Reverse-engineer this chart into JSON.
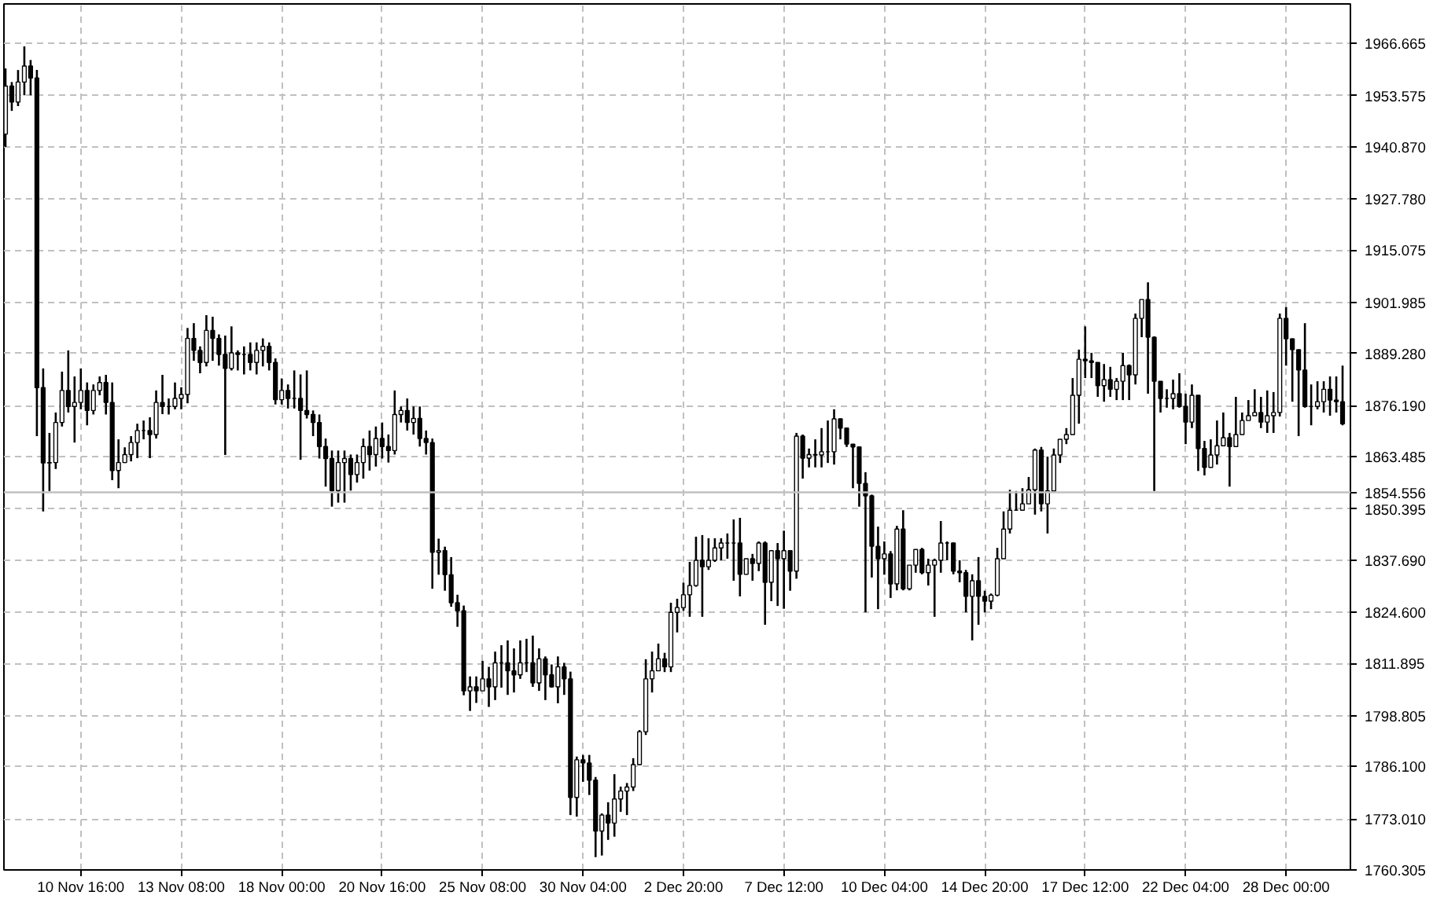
{
  "chart_data": {
    "type": "candlestick",
    "color": "#000000",
    "grid": true,
    "categories": [
      null,
      null,
      null,
      null,
      null,
      null,
      null,
      null,
      null,
      null,
      null,
      null,
      "10 Nov 16:00",
      null,
      null,
      null,
      null,
      null,
      null,
      null,
      null,
      null,
      null,
      null,
      null,
      null,
      null,
      null,
      "13 Nov 08:00",
      null,
      null,
      null,
      null,
      null,
      null,
      null,
      null,
      null,
      null,
      null,
      null,
      null,
      null,
      null,
      "18 Nov 00:00",
      null,
      null,
      null,
      null,
      null,
      null,
      null,
      null,
      null,
      null,
      null,
      null,
      null,
      null,
      null,
      "20 Nov 16:00",
      null,
      null,
      null,
      null,
      null,
      null,
      null,
      null,
      null,
      null,
      null,
      null,
      null,
      null,
      null,
      "25 Nov 08:00",
      null,
      null,
      null,
      null,
      null,
      null,
      null,
      null,
      null,
      null,
      null,
      null,
      null,
      null,
      null,
      "30 Nov 04:00",
      null,
      null,
      null,
      null,
      null,
      null,
      null,
      null,
      null,
      null,
      null,
      null,
      null,
      null,
      null,
      "2 Dec 20:00",
      null,
      null,
      null,
      null,
      null,
      null,
      null,
      null,
      null,
      null,
      null,
      null,
      null,
      null,
      null,
      "7 Dec 12:00",
      null,
      null,
      null,
      null,
      null,
      null,
      null,
      null,
      null,
      null,
      null,
      null,
      null,
      null,
      null,
      "10 Dec 04:00",
      null,
      null,
      null,
      null,
      null,
      null,
      null,
      null,
      null,
      null,
      null,
      null,
      null,
      null,
      null,
      "14 Dec 20:00",
      null,
      null,
      null,
      null,
      null,
      null,
      null,
      null,
      null,
      null,
      null,
      null,
      null,
      null,
      null,
      "17 Dec 12:00",
      null,
      null,
      null,
      null,
      null,
      null,
      null,
      null,
      null,
      null,
      null,
      null,
      null,
      null,
      null,
      "22 Dec 04:00",
      null,
      null,
      null,
      null,
      null,
      null,
      null,
      null,
      null,
      null,
      null,
      null,
      null,
      null,
      null,
      "28 Dec 00:00",
      null,
      null,
      null,
      null,
      null,
      null,
      null,
      null,
      null
    ],
    "ohlc": [
      [
        1944,
        1960.4,
        1940.8,
        1956
      ],
      [
        1956,
        1957,
        1949.8,
        1952
      ],
      [
        1952,
        1960,
        1951,
        1957
      ],
      [
        1957,
        1965.9,
        1953.7,
        1961
      ],
      [
        1961,
        1962.5,
        1953.7,
        1958
      ],
      [
        1958,
        1960,
        1868.6,
        1880.7
      ],
      [
        1880.7,
        1885.5,
        1849.8,
        1861.9
      ],
      [
        1861.9,
        1869.4,
        1854.9,
        1862
      ],
      [
        1862,
        1874.5,
        1860.4,
        1872
      ],
      [
        1872,
        1884.7,
        1871,
        1880
      ],
      [
        1880,
        1890,
        1874.5,
        1876
      ],
      [
        1876,
        1883.5,
        1867,
        1877
      ],
      [
        1877,
        1885.5,
        1875.3,
        1880
      ],
      [
        1880,
        1882,
        1871.3,
        1875
      ],
      [
        1875,
        1881.5,
        1874,
        1880
      ],
      [
        1880,
        1883.5,
        1878.8,
        1882
      ],
      [
        1882,
        1883.9,
        1874,
        1877
      ],
      [
        1877,
        1882,
        1857.6,
        1860
      ],
      [
        1860,
        1867.8,
        1855.6,
        1862
      ],
      [
        1862,
        1865.8,
        1861.9,
        1864
      ],
      [
        1864,
        1868.6,
        1862.3,
        1867
      ],
      [
        1867,
        1871.7,
        1863.1,
        1870
      ],
      [
        1870,
        1872.5,
        1867.8,
        1870
      ],
      [
        1870,
        1873.3,
        1863.1,
        1869
      ],
      [
        1869,
        1880,
        1868,
        1877
      ],
      [
        1877,
        1883.9,
        1874.1,
        1876
      ],
      [
        1876,
        1878,
        1874,
        1876
      ],
      [
        1876,
        1882,
        1875.3,
        1878
      ],
      [
        1878,
        1880.8,
        1875.3,
        1879
      ],
      [
        1879,
        1895.6,
        1876.8,
        1893
      ],
      [
        1893,
        1896.8,
        1887.4,
        1890
      ],
      [
        1890,
        1891,
        1884.3,
        1887
      ],
      [
        1887,
        1898.8,
        1886,
        1895
      ],
      [
        1895,
        1898.4,
        1887.4,
        1893
      ],
      [
        1893,
        1894,
        1886.2,
        1889
      ],
      [
        1889,
        1893.7,
        1863.9,
        1885.5
      ],
      [
        1885.5,
        1896,
        1885,
        1889.4
      ],
      [
        1889.4,
        1890,
        1885,
        1889
      ],
      [
        1889,
        1891,
        1884,
        1889
      ],
      [
        1889,
        1892,
        1885,
        1887
      ],
      [
        1887,
        1892,
        1884,
        1890
      ],
      [
        1890,
        1893,
        1886,
        1891
      ],
      [
        1891,
        1892,
        1885,
        1887
      ],
      [
        1887,
        1888,
        1876.5,
        1877.7
      ],
      [
        1877.7,
        1883,
        1876.5,
        1880
      ],
      [
        1880,
        1881.5,
        1875.5,
        1878
      ],
      [
        1878,
        1885,
        1875.5,
        1878
      ],
      [
        1878,
        1884,
        1862.7,
        1875
      ],
      [
        1875,
        1885,
        1873,
        1874
      ],
      [
        1874,
        1875,
        1868.6,
        1872
      ],
      [
        1872,
        1874,
        1863,
        1866
      ],
      [
        1866,
        1868,
        1856,
        1863
      ],
      [
        1863,
        1865,
        1851,
        1855
      ],
      [
        1855,
        1865,
        1852,
        1862
      ],
      [
        1862,
        1865,
        1852,
        1863
      ],
      [
        1863,
        1864,
        1855,
        1859
      ],
      [
        1859,
        1864,
        1857,
        1862
      ],
      [
        1862,
        1868,
        1858,
        1866
      ],
      [
        1866,
        1870,
        1860,
        1864
      ],
      [
        1864,
        1871,
        1861,
        1868
      ],
      [
        1868,
        1872,
        1863,
        1866
      ],
      [
        1866,
        1869,
        1862,
        1865
      ],
      [
        1865,
        1880,
        1864,
        1874
      ],
      [
        1874,
        1876,
        1872,
        1875
      ],
      [
        1875,
        1878,
        1870,
        1872
      ],
      [
        1872,
        1876,
        1869,
        1873
      ],
      [
        1873,
        1876,
        1866,
        1868
      ],
      [
        1868,
        1870,
        1864,
        1867
      ],
      [
        1867,
        1868,
        1830.5,
        1839.6
      ],
      [
        1839.6,
        1843,
        1834,
        1840
      ],
      [
        1840,
        1841,
        1830,
        1834
      ],
      [
        1834,
        1838.4,
        1826,
        1827
      ],
      [
        1827,
        1829,
        1821,
        1825
      ],
      [
        1825,
        1826.3,
        1803.9,
        1805
      ],
      [
        1805,
        1808.6,
        1800,
        1806
      ],
      [
        1806,
        1808.6,
        1802,
        1805
      ],
      [
        1805,
        1812.5,
        1805,
        1808
      ],
      [
        1808,
        1811,
        1801,
        1806
      ],
      [
        1806,
        1814.8,
        1802.7,
        1812
      ],
      [
        1812,
        1816.4,
        1805.8,
        1812
      ],
      [
        1812,
        1817.6,
        1804,
        1810
      ],
      [
        1810,
        1815.6,
        1804.6,
        1809
      ],
      [
        1809,
        1817.6,
        1808,
        1812
      ],
      [
        1812,
        1818,
        1809.7,
        1812
      ],
      [
        1812,
        1818.8,
        1806,
        1807
      ],
      [
        1807,
        1815.6,
        1805,
        1813
      ],
      [
        1813,
        1813.6,
        1802.7,
        1809
      ],
      [
        1809,
        1811.6,
        1805.8,
        1806
      ],
      [
        1806,
        1813.6,
        1801.9,
        1811
      ],
      [
        1811,
        1812,
        1804,
        1808
      ],
      [
        1808,
        1809.8,
        1774,
        1778.4
      ],
      [
        1778.4,
        1788.6,
        1773.6,
        1787.8
      ],
      [
        1787.8,
        1789,
        1782.3,
        1787
      ],
      [
        1787,
        1789,
        1779,
        1782.7
      ],
      [
        1782.7,
        1783.5,
        1763.5,
        1770
      ],
      [
        1770,
        1774.4,
        1763.9,
        1774
      ],
      [
        1774,
        1777.2,
        1767.8,
        1772
      ],
      [
        1772,
        1784.2,
        1768.6,
        1778
      ],
      [
        1778,
        1781.1,
        1774.8,
        1780
      ],
      [
        1780,
        1782,
        1774,
        1781
      ],
      [
        1781,
        1788.2,
        1780,
        1786.6
      ],
      [
        1786.6,
        1795.2,
        1786.5,
        1794.8
      ],
      [
        1794.8,
        1812.9,
        1794,
        1808
      ],
      [
        1808,
        1814.8,
        1804.6,
        1810
      ],
      [
        1810,
        1816.8,
        1810,
        1813
      ],
      [
        1813,
        1814.5,
        1809.7,
        1811
      ],
      [
        1811,
        1827,
        1809.7,
        1824.6
      ],
      [
        1824.6,
        1828,
        1819.6,
        1825.8
      ],
      [
        1825.8,
        1832,
        1825,
        1829
      ],
      [
        1829,
        1837.2,
        1823.5,
        1831.3
      ],
      [
        1831.3,
        1843.5,
        1831,
        1837.6
      ],
      [
        1837.6,
        1843.9,
        1823.5,
        1836
      ],
      [
        1836,
        1843.1,
        1835.2,
        1837.6
      ],
      [
        1837.6,
        1843.1,
        1837.2,
        1840.7
      ],
      [
        1840.7,
        1843.1,
        1837.6,
        1841.9
      ],
      [
        1841.9,
        1844.3,
        1838,
        1841.9
      ],
      [
        1841.9,
        1847.8,
        1832.5,
        1841.9
      ],
      [
        1841.9,
        1848.2,
        1828.6,
        1834.1
      ],
      [
        1834.1,
        1838,
        1834,
        1838
      ],
      [
        1838,
        1839.2,
        1832.5,
        1836.8
      ],
      [
        1836.8,
        1842.3,
        1834.9,
        1841.9
      ],
      [
        1841.9,
        1842.3,
        1821.5,
        1832.1
      ],
      [
        1832.1,
        1840,
        1827.4,
        1840
      ],
      [
        1840,
        1841.9,
        1826.2,
        1838
      ],
      [
        1838,
        1845,
        1825.5,
        1840
      ],
      [
        1840,
        1840,
        1830,
        1834.9
      ],
      [
        1834.9,
        1869.4,
        1833,
        1868.6
      ],
      [
        1868.6,
        1869,
        1858,
        1863.1
      ],
      [
        1863.1,
        1865.5,
        1860.8,
        1864
      ],
      [
        1864,
        1867.8,
        1860.8,
        1863.9
      ],
      [
        1863.9,
        1870.6,
        1860.8,
        1864.7
      ],
      [
        1864.7,
        1872.5,
        1861.9,
        1864.7
      ],
      [
        1864.7,
        1875.3,
        1861.5,
        1872.9
      ],
      [
        1872.9,
        1873,
        1867.8,
        1870.6
      ],
      [
        1870.6,
        1870.6,
        1865.9,
        1866.6
      ],
      [
        1866.6,
        1866.6,
        1855.6,
        1865.9
      ],
      [
        1865.9,
        1866,
        1851,
        1856.8
      ],
      [
        1856.8,
        1859.6,
        1824.6,
        1853.7
      ],
      [
        1853.7,
        1854,
        1833.3,
        1841.1
      ],
      [
        1841.1,
        1846,
        1825.4,
        1838
      ],
      [
        1838,
        1842.3,
        1834,
        1839.2
      ],
      [
        1839.2,
        1839.9,
        1828.2,
        1831.7
      ],
      [
        1831.7,
        1846.2,
        1830.1,
        1845.4
      ],
      [
        1845.4,
        1850.1,
        1830.1,
        1830.5
      ],
      [
        1830.5,
        1836.4,
        1830.1,
        1836.4
      ],
      [
        1836.4,
        1840.3,
        1834.5,
        1840.3
      ],
      [
        1840.3,
        1840.7,
        1834.1,
        1834.5
      ],
      [
        1834.5,
        1838,
        1831.3,
        1836.4
      ],
      [
        1836.4,
        1838,
        1823.5,
        1837.6
      ],
      [
        1837.6,
        1847.4,
        1834.5,
        1841.9
      ],
      [
        1841.9,
        1842.3,
        1837.6,
        1841.9
      ],
      [
        1841.9,
        1842,
        1834.1,
        1834.9
      ],
      [
        1834.9,
        1837.6,
        1832.1,
        1834.5
      ],
      [
        1834.5,
        1835.2,
        1824.6,
        1828.6
      ],
      [
        1828.6,
        1834.1,
        1817.6,
        1832.5
      ],
      [
        1832.5,
        1838.4,
        1821.5,
        1828.6
      ],
      [
        1828.6,
        1830,
        1824.6,
        1827.4
      ],
      [
        1827.4,
        1829.3,
        1825.4,
        1828.9
      ],
      [
        1828.9,
        1840.7,
        1828.6,
        1838
      ],
      [
        1838,
        1849.8,
        1838,
        1845.4
      ],
      [
        1845.4,
        1855.2,
        1844.3,
        1850.1
      ],
      [
        1850.1,
        1854.9,
        1850.1,
        1850.1
      ],
      [
        1850.1,
        1855.6,
        1850,
        1851.7
      ],
      [
        1851.7,
        1858.4,
        1851.7,
        1855.2
      ],
      [
        1855.2,
        1865.5,
        1849,
        1865.1
      ],
      [
        1865.1,
        1865.9,
        1849.8,
        1851.7
      ],
      [
        1851.7,
        1863.5,
        1844.3,
        1854.9
      ],
      [
        1854.9,
        1865.5,
        1854.9,
        1863.9
      ],
      [
        1863.9,
        1867.8,
        1861.9,
        1867.8
      ],
      [
        1867.8,
        1870.6,
        1866.6,
        1869
      ],
      [
        1869,
        1883.1,
        1869,
        1878.8
      ],
      [
        1878.8,
        1890.2,
        1871.7,
        1887.8
      ],
      [
        1887.8,
        1896,
        1883.1,
        1887.4
      ],
      [
        1887.4,
        1889.4,
        1883.1,
        1887
      ],
      [
        1887,
        1887,
        1878.4,
        1881.2
      ],
      [
        1881.2,
        1886.6,
        1877.2,
        1882.7
      ],
      [
        1882.7,
        1885.9,
        1878.4,
        1880.3
      ],
      [
        1880.3,
        1883.1,
        1877.6,
        1882.3
      ],
      [
        1882.3,
        1889.4,
        1877.6,
        1886.2
      ],
      [
        1886.2,
        1886.5,
        1877.6,
        1883.9
      ],
      [
        1883.9,
        1899.2,
        1881.5,
        1898
      ],
      [
        1898,
        1902.7,
        1893.3,
        1902.7
      ],
      [
        1902.7,
        1907,
        1879.2,
        1893.3
      ],
      [
        1893.3,
        1893.5,
        1854.9,
        1882.3
      ],
      [
        1882.3,
        1882.3,
        1874.5,
        1878
      ],
      [
        1878,
        1880.3,
        1875.7,
        1878
      ],
      [
        1878,
        1882.7,
        1875.3,
        1879.2
      ],
      [
        1879.2,
        1884.3,
        1875.7,
        1876
      ],
      [
        1876,
        1879.2,
        1866.6,
        1872.1
      ],
      [
        1872.1,
        1881.5,
        1870.6,
        1878.8
      ],
      [
        1878.8,
        1878.8,
        1859.9,
        1865.5
      ],
      [
        1865.5,
        1867.4,
        1858.8,
        1860.8
      ],
      [
        1860.8,
        1867.8,
        1860.8,
        1863.9
      ],
      [
        1863.9,
        1872.5,
        1861.5,
        1866.2
      ],
      [
        1866.2,
        1874.5,
        1866.2,
        1868.2
      ],
      [
        1868.2,
        1869.4,
        1856,
        1866
      ],
      [
        1866,
        1878.4,
        1866,
        1869
      ],
      [
        1869,
        1874.5,
        1869,
        1872.5
      ],
      [
        1872.5,
        1877.6,
        1872.5,
        1873.7
      ],
      [
        1873.7,
        1880.3,
        1873.7,
        1874.5
      ],
      [
        1874.5,
        1878.4,
        1870.6,
        1872.1
      ],
      [
        1872.1,
        1880,
        1869.4,
        1873.7
      ],
      [
        1873.7,
        1879.6,
        1869.4,
        1874.5
      ],
      [
        1874.5,
        1899.2,
        1873.5,
        1898
      ],
      [
        1898,
        1900.8,
        1886.2,
        1892.9
      ],
      [
        1892.9,
        1893,
        1877.2,
        1890.2
      ],
      [
        1890.2,
        1890.2,
        1868.6,
        1885.1
      ],
      [
        1885.1,
        1896.8,
        1875.7,
        1876
      ],
      [
        1876,
        1881.5,
        1871.3,
        1876
      ],
      [
        1876,
        1882.3,
        1875.3,
        1877.2
      ],
      [
        1877.2,
        1882.3,
        1874.5,
        1880.3
      ],
      [
        1880.3,
        1883.5,
        1873.7,
        1877.6
      ],
      [
        1877.6,
        1883.5,
        1874.5,
        1877.2
      ],
      [
        1877.2,
        1886.2,
        1871.3,
        1871.7
      ]
    ],
    "ylim": [
      1760.3,
      1976.5
    ],
    "yticks": [
      1760.305,
      {
        "value": 1773.01,
        "label": "1773.010"
      },
      {
        "value": 1786.1,
        "label": "1786.100"
      },
      1798.805,
      1811.895,
      {
        "value": 1824.6,
        "label": "1824.600"
      },
      {
        "value": 1837.69,
        "label": "1837.690"
      },
      1850.395,
      1863.485,
      {
        "value": 1876.19,
        "label": "1876.190"
      },
      {
        "value": 1889.28,
        "label": "1889.280"
      },
      1901.985,
      1915.075,
      {
        "value": 1927.78,
        "label": "1927.780"
      },
      {
        "value": 1940.87,
        "label": "1940.870"
      },
      1953.575,
      1966.665
    ],
    "ref_lines": [
      {
        "axis": "y",
        "value": 1854.556,
        "label": "1854.556",
        "color": "#c0c0c0"
      }
    ]
  }
}
